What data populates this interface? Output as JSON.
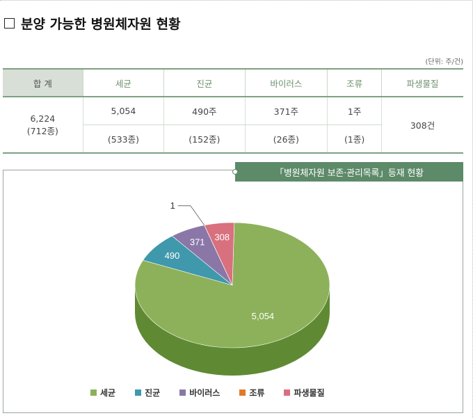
{
  "title": "분양 가능한 병원체자원 현황",
  "unit": "(단위: 주/건)",
  "table": {
    "headers": [
      "합 계",
      "세균",
      "진균",
      "바이러스",
      "조류",
      "파생물질"
    ],
    "total_line1": "6,224",
    "total_line2": "(712종)",
    "row1": [
      "5,054",
      "490주",
      "371주",
      "1주"
    ],
    "row2": [
      "(533종)",
      "(152종)",
      "(26종)",
      "(1종)"
    ],
    "derivatives": "308건"
  },
  "chart_data": {
    "type": "pie",
    "title": "「병원체자원 보존·관리목록」등재 현황",
    "categories": [
      "세균",
      "진균",
      "바이러스",
      "조류",
      "파생물질"
    ],
    "values": [
      5054,
      490,
      371,
      1,
      308
    ],
    "labels": [
      "5,054",
      "490",
      "371",
      "1",
      "308"
    ],
    "colors": [
      "#8db15a",
      "#3f98ab",
      "#8a77a8",
      "#e07a2a",
      "#d9707e"
    ],
    "side_colors": [
      "#5f8a33",
      "#2c6f80",
      "#63557e",
      "#a85718",
      "#a24e59"
    ],
    "legend_position": "bottom"
  }
}
